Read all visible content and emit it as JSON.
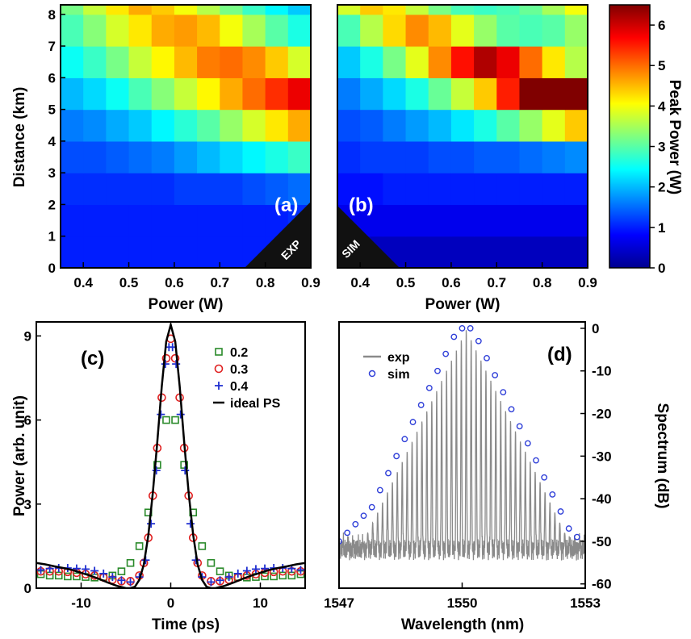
{
  "chart_data": [
    {
      "panel_label": "(a)",
      "type": "heatmap",
      "badge": "EXP",
      "xlabel": "Power (W)",
      "ylabel": "Distance (km)",
      "xlim": [
        0.35,
        0.9
      ],
      "ylim": [
        0,
        8.3
      ],
      "xticks": [
        "0.4",
        "0.5",
        "0.6",
        "0.7",
        "0.8",
        "0.9"
      ],
      "xtick_values": [
        0.4,
        0.5,
        0.6,
        0.7,
        0.8,
        0.9
      ],
      "yticks": [
        "0",
        "1",
        "2",
        "3",
        "4",
        "5",
        "6",
        "7",
        "8"
      ],
      "ytick_values": [
        0,
        1,
        2,
        3,
        4,
        5,
        6,
        7,
        8
      ],
      "x": [
        0.35,
        0.4,
        0.45,
        0.5,
        0.55,
        0.6,
        0.65,
        0.7,
        0.75,
        0.8,
        0.85,
        0.9
      ],
      "y": [
        0,
        1,
        2,
        3,
        4,
        5,
        6,
        7,
        8,
        8.3
      ],
      "z": [
        [
          1.0,
          1.0,
          1.0,
          1.0,
          1.0,
          1.0,
          1.0,
          1.0,
          1.0,
          1.0,
          1.0
        ],
        [
          1.0,
          1.0,
          1.0,
          1.0,
          1.0,
          1.0,
          1.0,
          1.0,
          1.0,
          1.0,
          1.1
        ],
        [
          1.1,
          1.1,
          1.1,
          1.1,
          1.1,
          1.2,
          1.2,
          1.2,
          1.3,
          1.4,
          1.5
        ],
        [
          1.3,
          1.3,
          1.4,
          1.5,
          1.6,
          1.8,
          2.0,
          2.2,
          2.4,
          2.6,
          2.8
        ],
        [
          1.6,
          1.7,
          1.9,
          2.1,
          2.4,
          2.7,
          3.0,
          3.4,
          3.8,
          4.2,
          4.6
        ],
        [
          2.0,
          2.2,
          2.5,
          2.9,
          3.3,
          3.7,
          4.1,
          4.6,
          5.0,
          5.4,
          5.8
        ],
        [
          2.5,
          2.8,
          3.2,
          3.7,
          4.1,
          4.5,
          4.9,
          5.0,
          4.8,
          4.4,
          3.8
        ],
        [
          2.9,
          3.3,
          3.8,
          4.2,
          4.6,
          4.7,
          4.5,
          4.0,
          3.5,
          3.0,
          2.6
        ],
        [
          3.2,
          3.7,
          4.2,
          4.6,
          4.4,
          4.0,
          3.6,
          3.2,
          2.8,
          2.4,
          2.1
        ]
      ],
      "colorbar": {
        "label": "Peak Power (W)",
        "range": [
          0,
          6.5
        ],
        "ticks": [
          "0",
          "1",
          "2",
          "3",
          "4",
          "5",
          "6"
        ],
        "tick_values": [
          0,
          1,
          2,
          3,
          4,
          5,
          6
        ]
      }
    },
    {
      "panel_label": "(b)",
      "type": "heatmap",
      "badge": "SIM",
      "xlabel": "Power (W)",
      "ylabel": "",
      "xlim": [
        0.35,
        0.9
      ],
      "ylim": [
        0,
        8.3
      ],
      "xticks": [
        "0.4",
        "0.5",
        "0.6",
        "0.7",
        "0.8",
        "0.9"
      ],
      "xtick_values": [
        0.4,
        0.5,
        0.6,
        0.7,
        0.8,
        0.9
      ],
      "x": [
        0.35,
        0.4,
        0.45,
        0.5,
        0.55,
        0.6,
        0.65,
        0.7,
        0.75,
        0.8,
        0.85,
        0.9
      ],
      "y": [
        0,
        1,
        2,
        3,
        4,
        5,
        6,
        7,
        8,
        8.3
      ],
      "z": [
        [
          0.4,
          0.4,
          0.4,
          0.4,
          0.4,
          0.4,
          0.4,
          0.4,
          0.4,
          0.4,
          0.4
        ],
        [
          0.7,
          0.7,
          0.7,
          0.7,
          0.7,
          0.7,
          0.7,
          0.7,
          0.7,
          0.7,
          0.7
        ],
        [
          0.9,
          0.9,
          1.0,
          1.0,
          1.0,
          1.0,
          1.0,
          1.0,
          1.0,
          1.0,
          1.0
        ],
        [
          1.1,
          1.2,
          1.2,
          1.2,
          1.3,
          1.3,
          1.4,
          1.4,
          1.5,
          1.6,
          1.7
        ],
        [
          1.3,
          1.4,
          1.6,
          1.8,
          2.0,
          2.3,
          2.6,
          3.0,
          3.4,
          3.9,
          4.4
        ],
        [
          1.6,
          1.9,
          2.2,
          2.6,
          3.1,
          3.7,
          4.4,
          5.5,
          6.5,
          6.5,
          6.5
        ],
        [
          2.1,
          2.6,
          3.2,
          3.9,
          4.8,
          5.6,
          6.2,
          5.8,
          5.0,
          4.2,
          3.6
        ],
        [
          2.9,
          3.6,
          4.3,
          4.8,
          4.5,
          3.9,
          3.4,
          3.0,
          2.9,
          3.0,
          3.4
        ],
        [
          3.8,
          4.4,
          4.2,
          3.7,
          3.2,
          2.9,
          2.8,
          2.9,
          3.1,
          3.5,
          4.0
        ]
      ]
    },
    {
      "panel_label": "(c)",
      "type": "scatter",
      "xlabel": "Time (ps)",
      "ylabel": "Power (arb. unit)",
      "xlim": [
        -15,
        15
      ],
      "ylim": [
        0,
        9.5
      ],
      "xticks": [
        "-10",
        "0",
        "10"
      ],
      "xtick_values": [
        -10,
        0,
        10
      ],
      "yticks": [
        "0",
        "3",
        "6",
        "9"
      ],
      "ytick_values": [
        0,
        3,
        6,
        9
      ],
      "series": [
        {
          "name": "0.2",
          "marker": "square",
          "color": "#2a8a2a",
          "x": [
            -14.5,
            -13.5,
            -12.5,
            -11.5,
            -10.5,
            -9.5,
            -8.5,
            -7.5,
            -6.5,
            -5.5,
            -4.5,
            -3.5,
            -2.5,
            -1.5,
            -0.5,
            0.5,
            1.5,
            2.5,
            3.5,
            4.5,
            5.5,
            6.5,
            7.5,
            8.5,
            9.5,
            10.5,
            11.5,
            12.5,
            13.5,
            14.5
          ],
          "y": [
            0.5,
            0.45,
            0.45,
            0.42,
            0.42,
            0.4,
            0.38,
            0.4,
            0.45,
            0.6,
            0.9,
            1.5,
            2.7,
            4.4,
            6.0,
            6.0,
            4.4,
            2.7,
            1.5,
            0.9,
            0.6,
            0.45,
            0.4,
            0.38,
            0.4,
            0.42,
            0.42,
            0.45,
            0.45,
            0.5
          ]
        },
        {
          "name": "0.3",
          "marker": "circle",
          "color": "#e02020",
          "x": [
            -14.5,
            -13.5,
            -12.5,
            -11.5,
            -10.5,
            -9.5,
            -8.5,
            -7.5,
            -6.5,
            -5.5,
            -4.5,
            -3.5,
            -3,
            -2.5,
            -2,
            -1.5,
            -1,
            -0.5,
            0,
            0.5,
            1,
            1.5,
            2,
            2.5,
            3,
            3.5,
            4.5,
            5.5,
            6.5,
            7.5,
            8.5,
            9.5,
            10.5,
            11.5,
            12.5,
            13.5,
            14.5
          ],
          "y": [
            0.6,
            0.6,
            0.6,
            0.58,
            0.55,
            0.5,
            0.45,
            0.38,
            0.3,
            0.25,
            0.25,
            0.45,
            0.9,
            1.8,
            3.3,
            5.0,
            6.8,
            8.2,
            8.9,
            8.2,
            6.8,
            5.0,
            3.3,
            1.8,
            0.9,
            0.45,
            0.25,
            0.25,
            0.3,
            0.38,
            0.45,
            0.5,
            0.55,
            0.58,
            0.6,
            0.6,
            0.6
          ]
        },
        {
          "name": "0.4",
          "marker": "plus",
          "color": "#1f2fd0",
          "x": [
            -14.5,
            -13.5,
            -12.5,
            -11.5,
            -10.5,
            -9.5,
            -8.5,
            -7.5,
            -6.5,
            -5.5,
            -4.5,
            -3.5,
            -2.8,
            -2.2,
            -1.6,
            -1.1,
            -0.6,
            -0.2,
            0.2,
            0.6,
            1.1,
            1.6,
            2.2,
            2.8,
            3.5,
            4.5,
            5.5,
            6.5,
            7.5,
            8.5,
            9.5,
            10.5,
            11.5,
            12.5,
            13.5,
            14.5
          ],
          "y": [
            0.65,
            0.7,
            0.72,
            0.72,
            0.7,
            0.68,
            0.62,
            0.52,
            0.4,
            0.28,
            0.22,
            0.4,
            1.0,
            2.3,
            4.2,
            6.2,
            8.0,
            8.6,
            8.6,
            8.0,
            6.2,
            4.2,
            2.3,
            1.0,
            0.4,
            0.22,
            0.28,
            0.4,
            0.52,
            0.62,
            0.68,
            0.7,
            0.72,
            0.72,
            0.7,
            0.65
          ]
        },
        {
          "name": "ideal PS",
          "marker": "line",
          "color": "#000000",
          "x": [
            -15,
            -14,
            -13,
            -12,
            -11,
            -10,
            -9,
            -8,
            -7,
            -6,
            -5,
            -4.5,
            -4,
            -3.5,
            -3,
            -2.5,
            -2,
            -1.5,
            -1,
            -0.5,
            0,
            0.5,
            1,
            1.5,
            2,
            2.5,
            3,
            3.5,
            4,
            4.5,
            5,
            6,
            7,
            8,
            9,
            10,
            11,
            12,
            13,
            14,
            15
          ],
          "y": [
            0.9,
            0.85,
            0.78,
            0.72,
            0.65,
            0.55,
            0.45,
            0.33,
            0.2,
            0.08,
            0.0,
            0.0,
            0.05,
            0.3,
            0.85,
            1.9,
            3.4,
            5.2,
            7.2,
            8.8,
            9.4,
            8.8,
            7.2,
            5.2,
            3.4,
            1.9,
            0.85,
            0.3,
            0.05,
            0.0,
            0.0,
            0.08,
            0.2,
            0.33,
            0.45,
            0.55,
            0.65,
            0.72,
            0.78,
            0.85,
            0.9
          ]
        }
      ]
    },
    {
      "panel_label": "(d)",
      "type": "line",
      "xlabel": "Wavelength (nm)",
      "ylabel": "Spectrum (dB)",
      "xlim": [
        1547,
        1553
      ],
      "ylim": [
        -61,
        1.5
      ],
      "xticks": [
        "1547",
        "1550",
        "1553"
      ],
      "xtick_values": [
        1547,
        1550,
        1553
      ],
      "yticks": [
        "0",
        "-10",
        "-20",
        "-30",
        "-40",
        "-50",
        "-60"
      ],
      "ytick_values": [
        0,
        -10,
        -20,
        -30,
        -40,
        -50,
        -60
      ],
      "peak_center": 1550.1,
      "line_spacing_nm": 0.12,
      "envelope_slope_db_per_nm": 20,
      "series": [
        {
          "name": "exp",
          "marker": "line",
          "color": "#8a8a8a",
          "x": [
            1547.0,
            1547.5,
            1548.0,
            1548.5,
            1549.0,
            1549.5,
            1550.1,
            1550.5,
            1551.0,
            1551.5,
            1552.0,
            1552.5,
            1553.0
          ],
          "y": [
            -52,
            -52,
            -50,
            -40,
            -30,
            -19,
            -6,
            -13,
            -23,
            -33,
            -44,
            -51,
            -52
          ]
        },
        {
          "name": "sim",
          "marker": "circle",
          "color": "#2f3fd8",
          "x": [
            1547.0,
            1547.2,
            1547.4,
            1547.6,
            1547.8,
            1548.0,
            1548.2,
            1548.4,
            1548.6,
            1548.8,
            1549.0,
            1549.2,
            1549.4,
            1549.6,
            1549.8,
            1550.0,
            1550.2,
            1550.4,
            1550.6,
            1550.8,
            1551.0,
            1551.2,
            1551.4,
            1551.6,
            1551.8,
            1552.0,
            1552.2,
            1552.4,
            1552.6,
            1552.8
          ],
          "y": [
            -50,
            -48,
            -46,
            -44,
            -42,
            -38,
            -34,
            -30,
            -26,
            -22,
            -18,
            -14,
            -10,
            -6,
            -2,
            0,
            0,
            -3,
            -7,
            -11,
            -15,
            -19,
            -23,
            -27,
            -31,
            -35,
            -39,
            -43,
            -47,
            -49
          ]
        }
      ]
    }
  ]
}
